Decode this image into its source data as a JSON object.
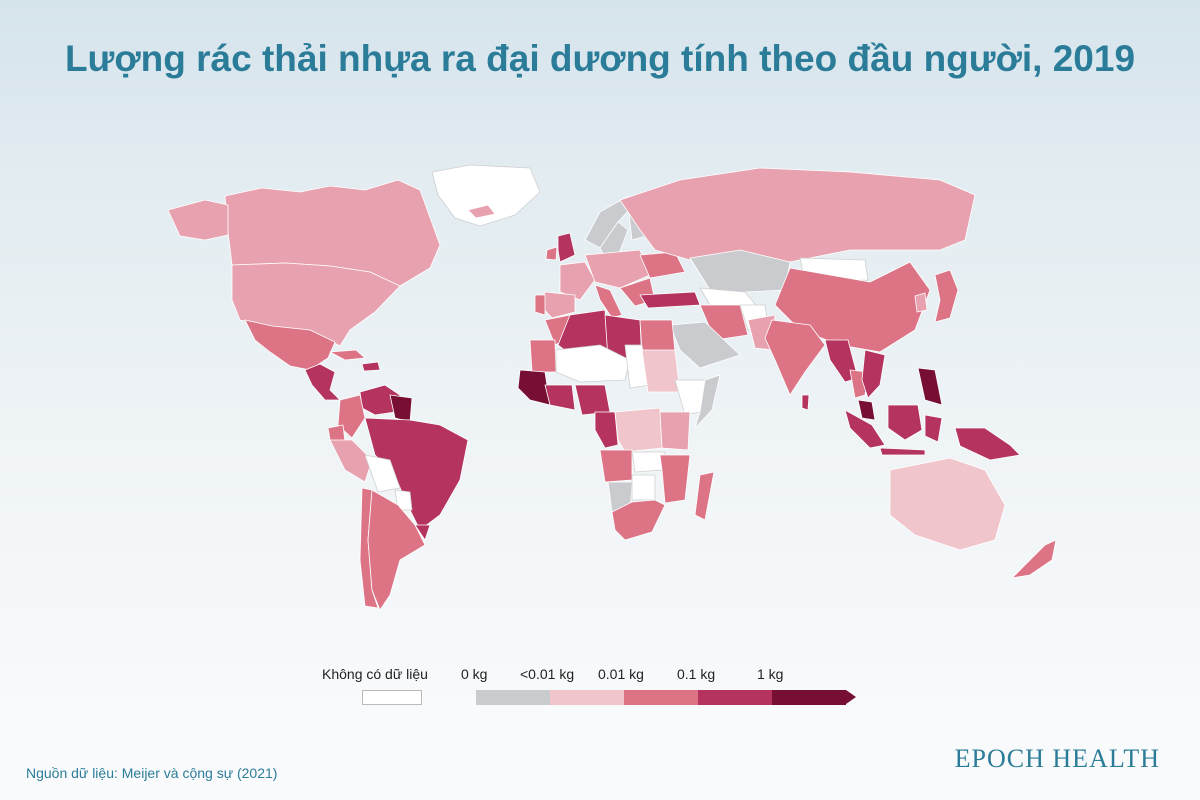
{
  "title": "Lượng rác thải nhựa ra đại dương tính theo đầu người, 2019",
  "legend": {
    "no_data_label": "Không có dữ liệu",
    "thresholds": [
      "0 kg",
      "<0.01 kg",
      "0.01 kg",
      "0.1 kg",
      "1 kg"
    ],
    "colors": {
      "no_data": "#ffffff",
      "zero": "#c9cbcf",
      "lt_001": "#f0c5cc",
      "r_001_01": "#e8a1ae",
      "r_01_1": "#dd7486",
      "r_1_10": "#b4345f",
      "gt_10": "#760f33"
    }
  },
  "regions": [
    {
      "name": "Greenland",
      "class": "no_data"
    },
    {
      "name": "Canada",
      "class": "r_001_01"
    },
    {
      "name": "United States",
      "class": "r_001_01"
    },
    {
      "name": "Alaska",
      "class": "r_001_01"
    },
    {
      "name": "Mexico",
      "class": "r_01_1"
    },
    {
      "name": "Central America",
      "class": "r_1_10"
    },
    {
      "name": "Cuba",
      "class": "r_01_1"
    },
    {
      "name": "Haiti / Dominican Rep.",
      "class": "r_1_10"
    },
    {
      "name": "Venezuela",
      "class": "r_1_10"
    },
    {
      "name": "Guyana / Suriname",
      "class": "gt_10"
    },
    {
      "name": "Colombia",
      "class": "r_01_1"
    },
    {
      "name": "Ecuador",
      "class": "r_01_1"
    },
    {
      "name": "Peru",
      "class": "r_001_01"
    },
    {
      "name": "Bolivia",
      "class": "no_data"
    },
    {
      "name": "Brazil",
      "class": "r_1_10"
    },
    {
      "name": "Paraguay",
      "class": "no_data"
    },
    {
      "name": "Uruguay",
      "class": "r_1_10"
    },
    {
      "name": "Chile",
      "class": "r_01_1"
    },
    {
      "name": "Argentina",
      "class": "r_01_1"
    },
    {
      "name": "Iceland",
      "class": "r_001_01"
    },
    {
      "name": "Ireland",
      "class": "r_01_1"
    },
    {
      "name": "United Kingdom",
      "class": "r_1_10"
    },
    {
      "name": "Norway",
      "class": "zero"
    },
    {
      "name": "Sweden",
      "class": "zero"
    },
    {
      "name": "Finland",
      "class": "zero"
    },
    {
      "name": "France",
      "class": "r_001_01"
    },
    {
      "name": "Spain",
      "class": "r_001_01"
    },
    {
      "name": "Portugal",
      "class": "r_01_1"
    },
    {
      "name": "Italy",
      "class": "r_01_1"
    },
    {
      "name": "Central Europe",
      "class": "r_001_01"
    },
    {
      "name": "Ukraine",
      "class": "r_01_1"
    },
    {
      "name": "Balkans",
      "class": "r_01_1"
    },
    {
      "name": "Turkey",
      "class": "r_1_10"
    },
    {
      "name": "Russia",
      "class": "r_001_01"
    },
    {
      "name": "Kazakhstan",
      "class": "zero"
    },
    {
      "name": "Mongolia",
      "class": "no_data"
    },
    {
      "name": "China",
      "class": "r_01_1"
    },
    {
      "name": "Korea",
      "class": "r_001_01"
    },
    {
      "name": "Japan",
      "class": "r_01_1"
    },
    {
      "name": "Iran",
      "class": "r_01_1"
    },
    {
      "name": "Saudi Arabia",
      "class": "zero"
    },
    {
      "name": "Central Asia",
      "class": "no_data"
    },
    {
      "name": "Afghanistan",
      "class": "no_data"
    },
    {
      "name": "Pakistan",
      "class": "r_001_01"
    },
    {
      "name": "India",
      "class": "r_01_1"
    },
    {
      "name": "Bangladesh / Myanmar",
      "class": "r_1_10"
    },
    {
      "name": "Sri Lanka",
      "class": "r_1_10"
    },
    {
      "name": "Thailand",
      "class": "r_01_1"
    },
    {
      "name": "Vietnam / Cambodia",
      "class": "r_1_10"
    },
    {
      "name": "Philippines",
      "class": "gt_10"
    },
    {
      "name": "Malaysia",
      "class": "gt_10"
    },
    {
      "name": "Sumatra",
      "class": "r_1_10"
    },
    {
      "name": "Java",
      "class": "r_1_10"
    },
    {
      "name": "Borneo",
      "class": "r_1_10"
    },
    {
      "name": "Sulawesi",
      "class": "r_1_10"
    },
    {
      "name": "New Guinea",
      "class": "r_1_10"
    },
    {
      "name": "Australia",
      "class": "lt_001"
    },
    {
      "name": "New Zealand",
      "class": "r_01_1"
    },
    {
      "name": "Morocco",
      "class": "r_01_1"
    },
    {
      "name": "Algeria",
      "class": "r_1_10"
    },
    {
      "name": "Libya",
      "class": "r_1_10"
    },
    {
      "name": "Egypt",
      "class": "r_01_1"
    },
    {
      "name": "Mauritania",
      "class": "r_01_1"
    },
    {
      "name": "Mali / Niger",
      "class": "no_data"
    },
    {
      "name": "Chad",
      "class": "no_data"
    },
    {
      "name": "Sudan",
      "class": "lt_001"
    },
    {
      "name": "Ethiopia",
      "class": "no_data"
    },
    {
      "name": "Somalia",
      "class": "zero"
    },
    {
      "name": "West Africa coast",
      "class": "gt_10"
    },
    {
      "name": "Ghana",
      "class": "r_1_10"
    },
    {
      "name": "Nigeria",
      "class": "r_1_10"
    },
    {
      "name": "Cameroon / Gabon",
      "class": "r_1_10"
    },
    {
      "name": "DR Congo",
      "class": "lt_001"
    },
    {
      "name": "Kenya / Tanzania",
      "class": "r_001_01"
    },
    {
      "name": "Angola",
      "class": "r_01_1"
    },
    {
      "name": "Zambia",
      "class": "no_data"
    },
    {
      "name": "Mozambique",
      "class": "r_01_1"
    },
    {
      "name": "Namibia",
      "class": "zero"
    },
    {
      "name": "Botswana",
      "class": "no_data"
    },
    {
      "name": "South Africa",
      "class": "r_01_1"
    },
    {
      "name": "Madagascar",
      "class": "r_01_1"
    }
  ],
  "source": "Nguồn dữ liệu: Meijer và cộng sự (2021)",
  "brand": "EPOCH HEALTH"
}
